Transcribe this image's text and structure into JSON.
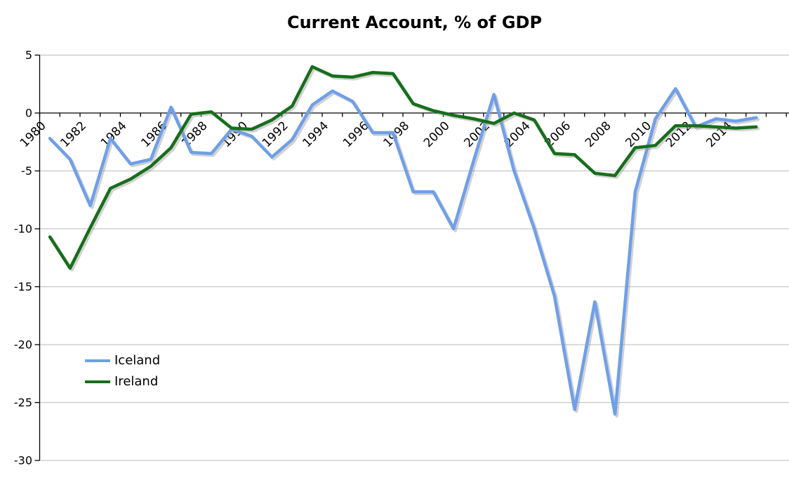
{
  "chart_data": {
    "type": "line",
    "title": "Current Account, % of GDP",
    "x": [
      1980,
      1981,
      1982,
      1983,
      1984,
      1985,
      1986,
      1987,
      1988,
      1989,
      1990,
      1991,
      1992,
      1993,
      1994,
      1995,
      1996,
      1997,
      1998,
      1999,
      2000,
      2001,
      2002,
      2003,
      2004,
      2005,
      2006,
      2007,
      2008,
      2009,
      2010,
      2011,
      2012,
      2013,
      2014,
      2015
    ],
    "series": [
      {
        "name": "Iceland",
        "color": "#6F9FE9",
        "values": [
          -2.2,
          -4.0,
          -8.0,
          -2.2,
          -4.4,
          -4.0,
          0.5,
          -3.4,
          -3.5,
          -1.4,
          -2.0,
          -3.8,
          -2.3,
          0.7,
          1.9,
          1.0,
          -1.7,
          -1.7,
          -6.8,
          -6.8,
          -10.0,
          -4.1,
          1.6,
          -5.0,
          -10.0,
          -15.8,
          -25.6,
          -16.3,
          -26.0,
          -6.8,
          -0.5,
          2.1,
          -1.2,
          -0.5,
          -0.7,
          -0.4
        ]
      },
      {
        "name": "Ireland",
        "color": "#176E1B",
        "values": [
          -10.7,
          -13.4,
          -9.9,
          -6.5,
          -5.7,
          -4.6,
          -3.0,
          -0.1,
          0.1,
          -1.3,
          -1.4,
          -0.6,
          0.6,
          4.0,
          3.2,
          3.1,
          3.5,
          3.4,
          0.8,
          0.2,
          -0.2,
          -0.5,
          -0.9,
          0.0,
          -0.6,
          -3.5,
          -3.6,
          -5.2,
          -5.4,
          -3.0,
          -2.8,
          -1.1,
          -1.1,
          -1.2,
          -1.3,
          -1.2
        ]
      }
    ],
    "ylim": [
      -30,
      5
    ],
    "yticks": [
      5,
      0,
      -5,
      -10,
      -15,
      -20,
      -25,
      -30
    ],
    "xtick_labels": [
      "1980",
      "1982",
      "1984",
      "1986",
      "1988",
      "1990",
      "1992",
      "1994",
      "1996",
      "1998",
      "2000",
      "2002",
      "2004",
      "2006",
      "2008",
      "2010",
      "2012",
      "2014"
    ],
    "xlabel": "",
    "ylabel": "",
    "grid": "horizontal",
    "legend_position": "middle-left",
    "colors": {
      "gridline": "#C6C6C6",
      "axis": "#000000",
      "shadow": "#9C9C9C",
      "text": "#000000",
      "background": "#FFFFFF"
    }
  }
}
